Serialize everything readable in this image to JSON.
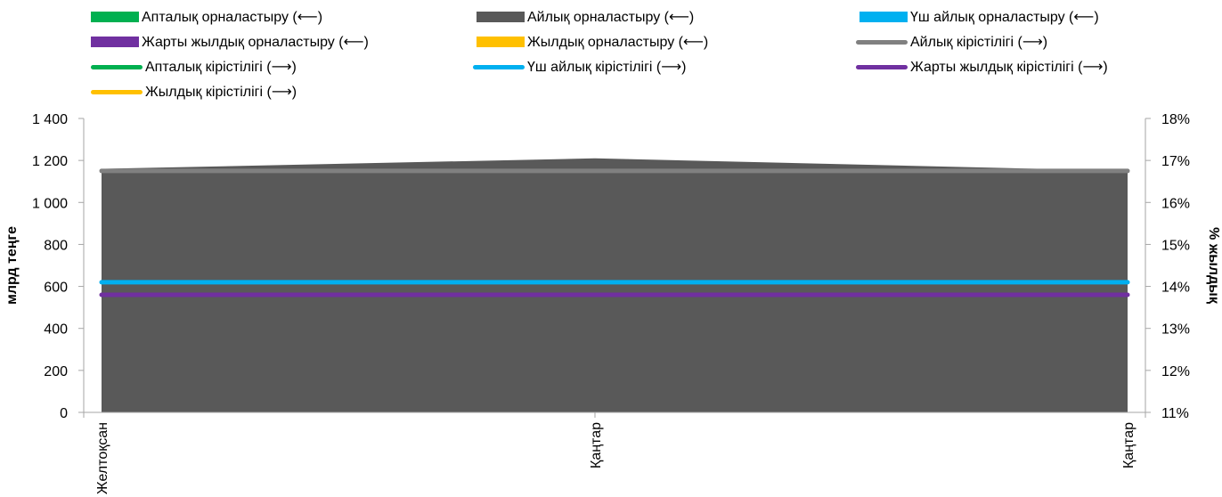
{
  "chart_data": {
    "type": "area",
    "categories": [
      "Желтоқсан",
      "Қаңтар",
      "Қаңтар"
    ],
    "left_axis": {
      "label": "млрд теңге",
      "ylim": [
        0,
        1400
      ],
      "ticks": [
        0,
        200,
        400,
        600,
        800,
        1000,
        1200,
        1400
      ],
      "tick_labels": [
        "0",
        "200",
        "400",
        "600",
        "800",
        "1 000",
        "1 200",
        "1 400"
      ]
    },
    "right_axis": {
      "label": "% жылдық",
      "ylim": [
        11,
        18
      ],
      "ticks": [
        11,
        12,
        13,
        14,
        15,
        16,
        17,
        18
      ],
      "tick_labels": [
        "11%",
        "12%",
        "13%",
        "14%",
        "15%",
        "16%",
        "17%",
        "18%"
      ]
    },
    "grid": false,
    "legend_position": "top",
    "series": [
      {
        "name": "Апталық орналастыру (⟵)",
        "kind": "area",
        "axis": "left",
        "color": "#00b050",
        "values": [
          0,
          0,
          0
        ]
      },
      {
        "name": "Айлық орналастыру (⟵)",
        "kind": "area",
        "axis": "left",
        "color": "#595959",
        "values": [
          1160,
          1210,
          1150
        ]
      },
      {
        "name": "Үш айлық орналастыру (⟵)",
        "kind": "area",
        "axis": "left",
        "color": "#00b0f0",
        "values": [
          0,
          0,
          0
        ]
      },
      {
        "name": "Жарты жылдық орналастыру (⟵)",
        "kind": "area",
        "axis": "left",
        "color": "#7030a0",
        "values": [
          0,
          0,
          0
        ]
      },
      {
        "name": "Жылдық орналастыру (⟵)",
        "kind": "area",
        "axis": "left",
        "color": "#ffc000",
        "values": [
          0,
          0,
          0
        ]
      },
      {
        "name": "Айлық кірістілігі (⟶)",
        "kind": "line",
        "axis": "right",
        "color": "#808080",
        "values": [
          16.75,
          16.75,
          16.75
        ]
      },
      {
        "name": "Апталық кірістілігі (⟶)",
        "kind": "line",
        "axis": "right",
        "color": "#00b050",
        "values": [
          null,
          null,
          null
        ]
      },
      {
        "name": "Үш айлық кірістілігі (⟶)",
        "kind": "line",
        "axis": "right",
        "color": "#00b0f0",
        "values": [
          14.1,
          14.1,
          14.1
        ]
      },
      {
        "name": "Жарты жылдық кірістілігі (⟶)",
        "kind": "line",
        "axis": "right",
        "color": "#7030a0",
        "values": [
          13.8,
          13.8,
          13.8
        ]
      },
      {
        "name": "Жылдық кірістілігі (⟶)",
        "kind": "line",
        "axis": "right",
        "color": "#ffc000",
        "values": [
          null,
          null,
          null
        ]
      }
    ]
  }
}
